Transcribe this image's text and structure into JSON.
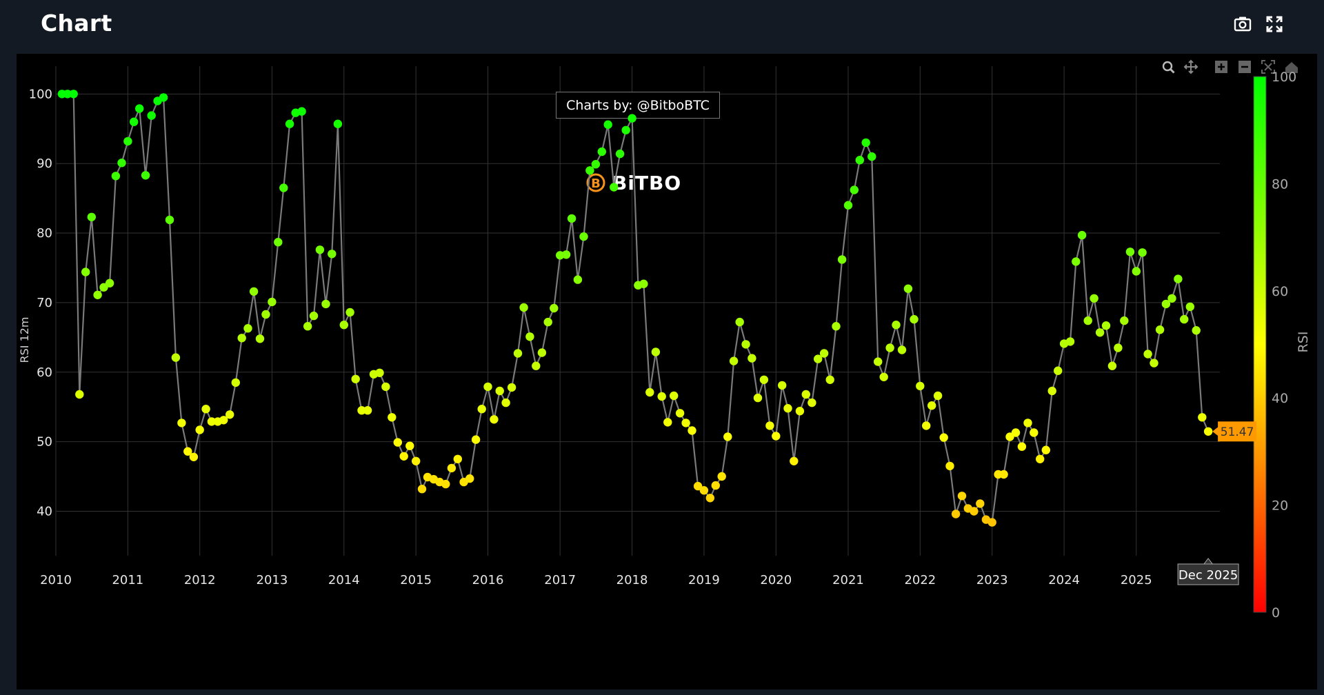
{
  "header": {
    "title": "Chart",
    "camera_icon": "camera-icon",
    "fullscreen_icon": "fullscreen-icon"
  },
  "modebar": [
    "zoom-icon",
    "pan-icon",
    "zoom-in-icon",
    "zoom-out-icon",
    "autoscale-icon",
    "reset-axes-icon"
  ],
  "watermark": {
    "credit": "Charts by: @BitboBTC",
    "logo_text": "BiTBO"
  },
  "colors": {
    "page_bg": "#141a23",
    "plot_bg": "#000000",
    "grid": "#333333",
    "line": "#7a7a7a",
    "label_bg": "#ff9900"
  },
  "chart_data": {
    "type": "scatter",
    "ylabel": "RSI 12m",
    "colorbar_title": "RSI",
    "colorscale": [
      "#ff0000",
      "#ffff00",
      "#00ff00"
    ],
    "colorbar_range": [
      0,
      100
    ],
    "colorbar_ticks": [
      0,
      20,
      40,
      60,
      80,
      100
    ],
    "xlim": [
      "2010-01-01",
      "2026-03-01"
    ],
    "ylim": [
      33.6,
      104
    ],
    "yticks": [
      40,
      50,
      60,
      70,
      80,
      90,
      100
    ],
    "xticks": [
      "2010",
      "2011",
      "2012",
      "2013",
      "2014",
      "2015",
      "2016",
      "2017",
      "2018",
      "2019",
      "2020",
      "2021",
      "2022",
      "2023",
      "2024",
      "2025"
    ],
    "hover_x_label": "Dec 2025",
    "last_value_label": "51.47",
    "start_date": "2010-02",
    "step": "month",
    "values": [
      100,
      100,
      100,
      56.8,
      74.4,
      82.3,
      71.1,
      72.2,
      72.8,
      88.2,
      90.1,
      93.2,
      96,
      97.9,
      88.3,
      96.9,
      99,
      99.5,
      81.9,
      62.1,
      52.7,
      48.6,
      47.8,
      51.7,
      54.7,
      52.9,
      52.9,
      53.1,
      53.9,
      58.5,
      64.9,
      66.3,
      71.6,
      64.8,
      68.3,
      70.1,
      78.7,
      86.5,
      95.7,
      97.3,
      97.5,
      66.6,
      68.1,
      77.6,
      69.8,
      77,
      95.7,
      66.8,
      68.6,
      59,
      54.5,
      54.5,
      59.7,
      59.9,
      57.9,
      53.5,
      49.9,
      47.9,
      49.4,
      47.2,
      43.2,
      44.9,
      44.6,
      44.2,
      43.9,
      46.2,
      47.5,
      44.2,
      44.7,
      50.3,
      54.7,
      57.9,
      53.2,
      57.3,
      55.6,
      57.8,
      62.7,
      69.3,
      65.1,
      60.9,
      62.8,
      67.2,
      69.2,
      76.8,
      76.9,
      82.1,
      73.3,
      79.5,
      89,
      89.9,
      91.7,
      95.6,
      86.6,
      91.4,
      94.8,
      96.5,
      72.5,
      72.7,
      57.1,
      62.9,
      56.5,
      52.8,
      56.6,
      54.1,
      52.7,
      51.6,
      43.6,
      43,
      41.9,
      43.7,
      45,
      50.7,
      61.6,
      67.2,
      64,
      62,
      56.3,
      58.9,
      52.3,
      50.8,
      58.1,
      54.8,
      47.2,
      54.4,
      56.8,
      55.6,
      61.9,
      62.7,
      58.9,
      66.6,
      76.2,
      84,
      86.2,
      90.5,
      93,
      91,
      61.5,
      59.3,
      63.5,
      66.8,
      63.2,
      72,
      67.6,
      58,
      52.3,
      55.2,
      56.6,
      50.6,
      46.5,
      39.6,
      42.2,
      40.4,
      40,
      41.1,
      38.8,
      38.4,
      45.3,
      45.3,
      50.7,
      51.3,
      49.3,
      52.7,
      51.3,
      47.5,
      48.8,
      57.3,
      60.2,
      64.1,
      64.4,
      75.9,
      79.7,
      67.4,
      70.6,
      65.7,
      66.7,
      60.9,
      63.5,
      67.4,
      77.3,
      74.5,
      77.2,
      62.6,
      61.3,
      66.1,
      69.8,
      70.6,
      73.4,
      67.6,
      69.4,
      66,
      53.5,
      51.47
    ]
  }
}
